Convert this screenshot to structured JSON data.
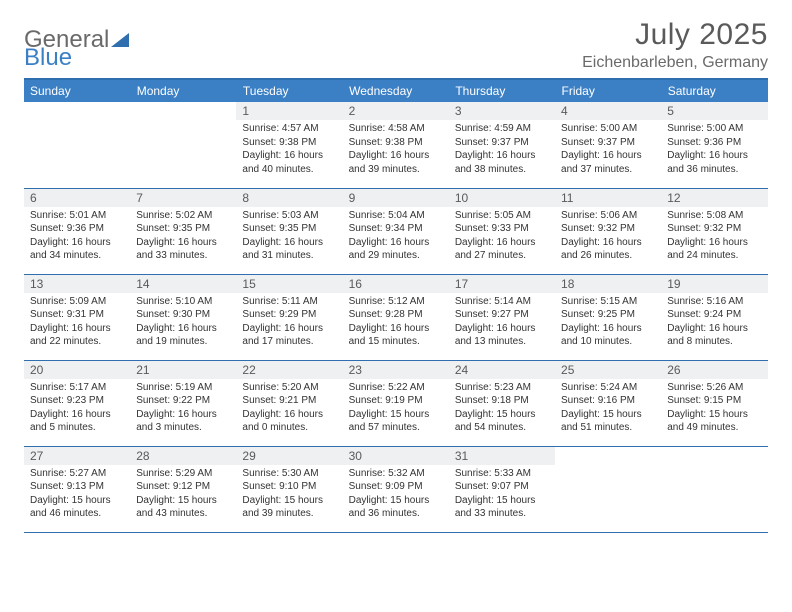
{
  "brand": {
    "general": "General",
    "blue": "Blue"
  },
  "title": "July 2025",
  "location": "Eichenbarleben, Germany",
  "colors": {
    "header_bg": "#3b7fc4",
    "header_text": "#ffffff",
    "rule": "#2f6fb0",
    "daynum_bg": "#eef0f1",
    "text": "#333333",
    "muted": "#6a6a6a",
    "logo_blue": "#3b7fc4"
  },
  "typography": {
    "title_fontsize": 30,
    "location_fontsize": 16,
    "header_fontsize": 12,
    "daynum_fontsize": 12,
    "body_fontsize": 10
  },
  "layout": {
    "start_weekday": "Sunday",
    "first_day_column": 2,
    "days_in_month": 31,
    "columns": 7,
    "rows": 5
  },
  "weekdays": [
    "Sunday",
    "Monday",
    "Tuesday",
    "Wednesday",
    "Thursday",
    "Friday",
    "Saturday"
  ],
  "days": [
    {
      "n": 1,
      "sunrise": "4:57 AM",
      "sunset": "9:38 PM",
      "daylight": "16 hours and 40 minutes."
    },
    {
      "n": 2,
      "sunrise": "4:58 AM",
      "sunset": "9:38 PM",
      "daylight": "16 hours and 39 minutes."
    },
    {
      "n": 3,
      "sunrise": "4:59 AM",
      "sunset": "9:37 PM",
      "daylight": "16 hours and 38 minutes."
    },
    {
      "n": 4,
      "sunrise": "5:00 AM",
      "sunset": "9:37 PM",
      "daylight": "16 hours and 37 minutes."
    },
    {
      "n": 5,
      "sunrise": "5:00 AM",
      "sunset": "9:36 PM",
      "daylight": "16 hours and 36 minutes."
    },
    {
      "n": 6,
      "sunrise": "5:01 AM",
      "sunset": "9:36 PM",
      "daylight": "16 hours and 34 minutes."
    },
    {
      "n": 7,
      "sunrise": "5:02 AM",
      "sunset": "9:35 PM",
      "daylight": "16 hours and 33 minutes."
    },
    {
      "n": 8,
      "sunrise": "5:03 AM",
      "sunset": "9:35 PM",
      "daylight": "16 hours and 31 minutes."
    },
    {
      "n": 9,
      "sunrise": "5:04 AM",
      "sunset": "9:34 PM",
      "daylight": "16 hours and 29 minutes."
    },
    {
      "n": 10,
      "sunrise": "5:05 AM",
      "sunset": "9:33 PM",
      "daylight": "16 hours and 27 minutes."
    },
    {
      "n": 11,
      "sunrise": "5:06 AM",
      "sunset": "9:32 PM",
      "daylight": "16 hours and 26 minutes."
    },
    {
      "n": 12,
      "sunrise": "5:08 AM",
      "sunset": "9:32 PM",
      "daylight": "16 hours and 24 minutes."
    },
    {
      "n": 13,
      "sunrise": "5:09 AM",
      "sunset": "9:31 PM",
      "daylight": "16 hours and 22 minutes."
    },
    {
      "n": 14,
      "sunrise": "5:10 AM",
      "sunset": "9:30 PM",
      "daylight": "16 hours and 19 minutes."
    },
    {
      "n": 15,
      "sunrise": "5:11 AM",
      "sunset": "9:29 PM",
      "daylight": "16 hours and 17 minutes."
    },
    {
      "n": 16,
      "sunrise": "5:12 AM",
      "sunset": "9:28 PM",
      "daylight": "16 hours and 15 minutes."
    },
    {
      "n": 17,
      "sunrise": "5:14 AM",
      "sunset": "9:27 PM",
      "daylight": "16 hours and 13 minutes."
    },
    {
      "n": 18,
      "sunrise": "5:15 AM",
      "sunset": "9:25 PM",
      "daylight": "16 hours and 10 minutes."
    },
    {
      "n": 19,
      "sunrise": "5:16 AM",
      "sunset": "9:24 PM",
      "daylight": "16 hours and 8 minutes."
    },
    {
      "n": 20,
      "sunrise": "5:17 AM",
      "sunset": "9:23 PM",
      "daylight": "16 hours and 5 minutes."
    },
    {
      "n": 21,
      "sunrise": "5:19 AM",
      "sunset": "9:22 PM",
      "daylight": "16 hours and 3 minutes."
    },
    {
      "n": 22,
      "sunrise": "5:20 AM",
      "sunset": "9:21 PM",
      "daylight": "16 hours and 0 minutes."
    },
    {
      "n": 23,
      "sunrise": "5:22 AM",
      "sunset": "9:19 PM",
      "daylight": "15 hours and 57 minutes."
    },
    {
      "n": 24,
      "sunrise": "5:23 AM",
      "sunset": "9:18 PM",
      "daylight": "15 hours and 54 minutes."
    },
    {
      "n": 25,
      "sunrise": "5:24 AM",
      "sunset": "9:16 PM",
      "daylight": "15 hours and 51 minutes."
    },
    {
      "n": 26,
      "sunrise": "5:26 AM",
      "sunset": "9:15 PM",
      "daylight": "15 hours and 49 minutes."
    },
    {
      "n": 27,
      "sunrise": "5:27 AM",
      "sunset": "9:13 PM",
      "daylight": "15 hours and 46 minutes."
    },
    {
      "n": 28,
      "sunrise": "5:29 AM",
      "sunset": "9:12 PM",
      "daylight": "15 hours and 43 minutes."
    },
    {
      "n": 29,
      "sunrise": "5:30 AM",
      "sunset": "9:10 PM",
      "daylight": "15 hours and 39 minutes."
    },
    {
      "n": 30,
      "sunrise": "5:32 AM",
      "sunset": "9:09 PM",
      "daylight": "15 hours and 36 minutes."
    },
    {
      "n": 31,
      "sunrise": "5:33 AM",
      "sunset": "9:07 PM",
      "daylight": "15 hours and 33 minutes."
    }
  ],
  "labels": {
    "sunrise": "Sunrise:",
    "sunset": "Sunset:",
    "daylight": "Daylight:"
  }
}
